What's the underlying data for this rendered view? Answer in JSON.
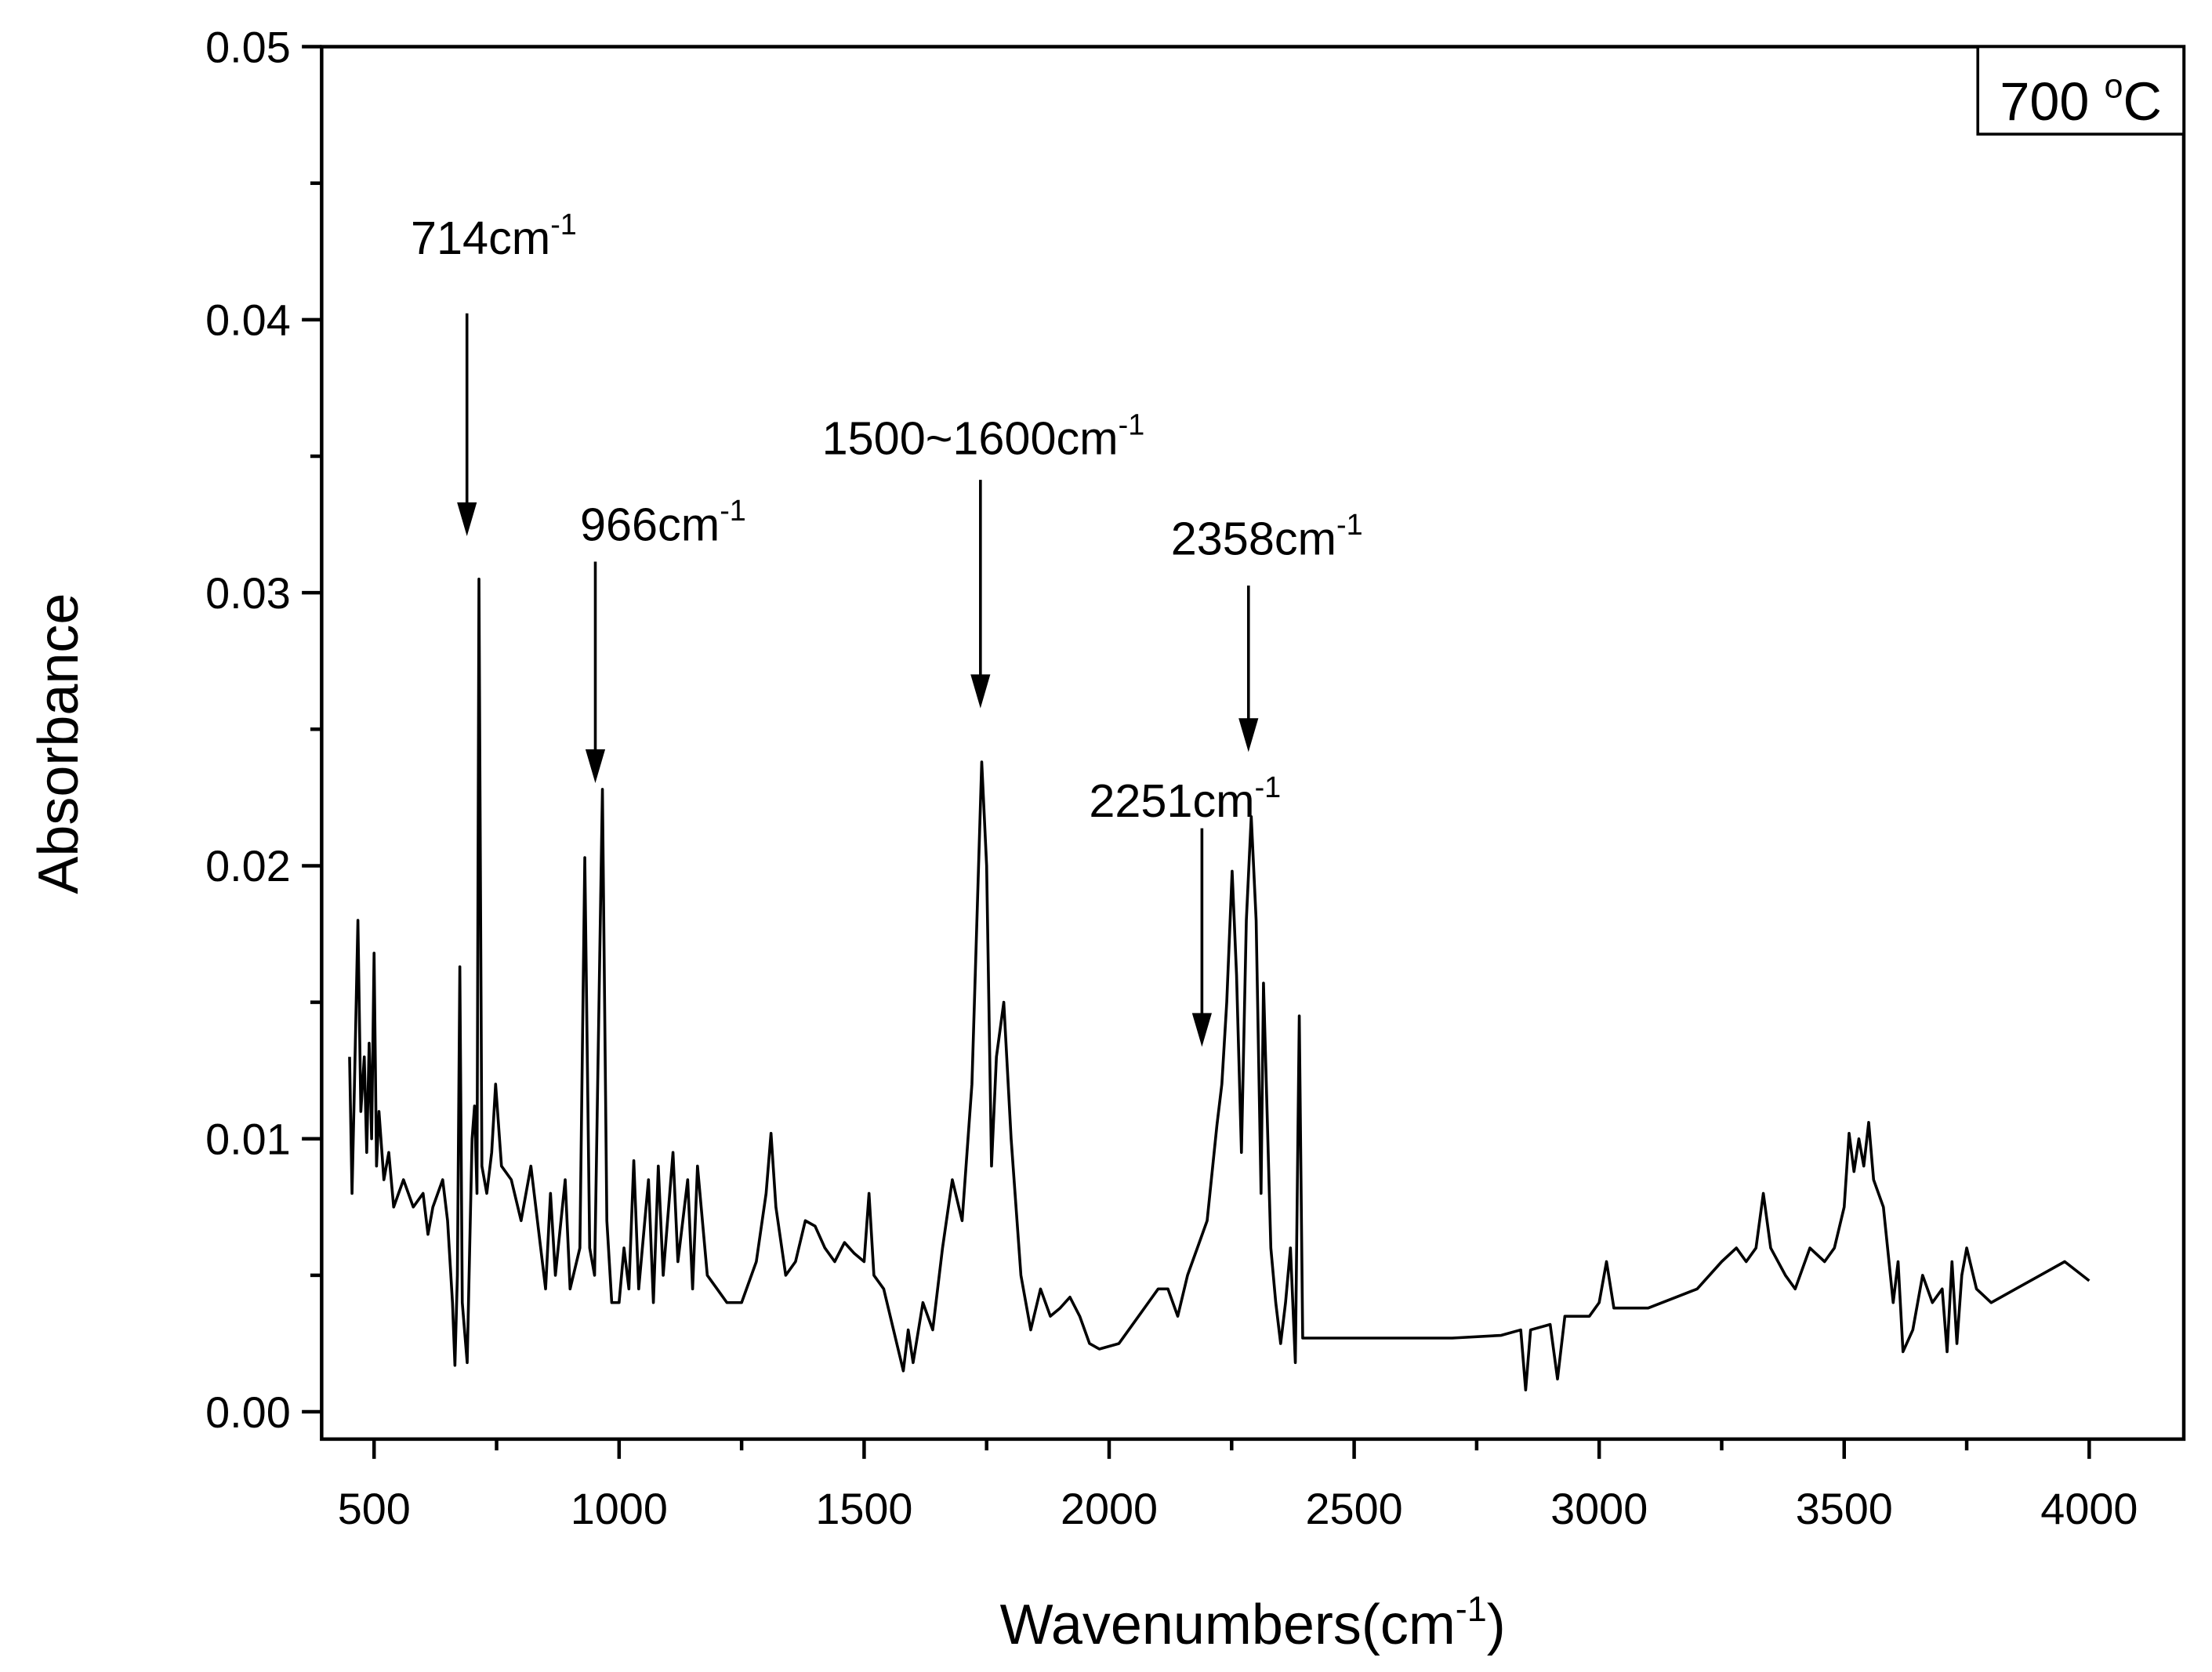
{
  "chart_data": {
    "type": "line",
    "x_label": {
      "text": "Wavenumbers(cm",
      "sup": "-1",
      "tail": ")"
    },
    "y_label": "Absorbance",
    "legend_box": {
      "text": "700 ",
      "sup": "o",
      "tail": "C"
    },
    "xlim": [
      393,
      4193
    ],
    "ylim": [
      -0.001,
      0.05
    ],
    "xticks": [
      500,
      1000,
      1500,
      2000,
      2500,
      3000,
      3500,
      4000
    ],
    "xminor_ticks": [
      750,
      1250,
      1750,
      2250,
      2750,
      3250,
      3750
    ],
    "yticks": [
      {
        "value": 0,
        "label": "0.00"
      },
      0.01,
      0.02,
      0.03,
      0.04,
      0.05
    ],
    "yminor_ticks": [
      0.005,
      0.015,
      0.025,
      0.035,
      0.045
    ],
    "annotations": [
      {
        "text": "714cm",
        "sup": "-1"
      },
      {
        "text": "966cm",
        "sup": "-1"
      },
      {
        "text": "1500~1600cm",
        "sup": "-1"
      },
      {
        "text": "2358cm",
        "sup": "-1"
      },
      {
        "text": "2251cm",
        "sup": "-1"
      }
    ],
    "series": [
      {
        "name": "700 °C",
        "color": "#000000",
        "x": [
          450,
          455,
          460,
          467,
          473,
          480,
          485,
          490,
          495,
          500,
          505,
          510,
          520,
          530,
          540,
          560,
          580,
          600,
          610,
          620,
          640,
          650,
          660,
          665,
          670,
          675,
          680,
          690,
          700,
          705,
          710,
          714,
          720,
          730,
          740,
          748,
          760,
          780,
          800,
          820,
          840,
          850,
          860,
          870,
          890,
          900,
          920,
          930,
          940,
          950,
          966,
          975,
          985,
          1000,
          1010,
          1020,
          1030,
          1040,
          1060,
          1070,
          1080,
          1090,
          1110,
          1120,
          1140,
          1150,
          1160,
          1180,
          1200,
          1220,
          1250,
          1280,
          1300,
          1310,
          1320,
          1340,
          1360,
          1380,
          1400,
          1420,
          1440,
          1460,
          1480,
          1500,
          1510,
          1520,
          1540,
          1560,
          1580,
          1590,
          1600,
          1620,
          1640,
          1660,
          1680,
          1700,
          1720,
          1740,
          1750,
          1760,
          1770,
          1785,
          1800,
          1820,
          1840,
          1860,
          1880,
          1900,
          1920,
          1940,
          1960,
          1980,
          2000,
          2020,
          2040,
          2060,
          2080,
          2100,
          2120,
          2140,
          2160,
          2180,
          2200,
          2220,
          2230,
          2240,
          2251,
          2260,
          2270,
          2280,
          2290,
          2300,
          2310,
          2315,
          2320,
          2330,
          2340,
          2350,
          2360,
          2370,
          2380,
          2388,
          2395,
          2420,
          2500,
          2600,
          2700,
          2800,
          2840,
          2850,
          2860,
          2900,
          2915,
          2930,
          2980,
          3000,
          3015,
          3030,
          3100,
          3200,
          3250,
          3280,
          3300,
          3320,
          3335,
          3350,
          3380,
          3400,
          3430,
          3460,
          3480,
          3500,
          3510,
          3520,
          3530,
          3540,
          3550,
          3560,
          3580,
          3600,
          3610,
          3620,
          3640,
          3660,
          3680,
          3700,
          3710,
          3720,
          3730,
          3740,
          3750,
          3770,
          3800,
          3850,
          3900,
          3950,
          4000
        ],
        "values": [
          0.013,
          0.008,
          0.012,
          0.018,
          0.011,
          0.013,
          0.0095,
          0.0135,
          0.01,
          0.0168,
          0.009,
          0.011,
          0.0085,
          0.0095,
          0.0075,
          0.0085,
          0.0075,
          0.008,
          0.0065,
          0.0075,
          0.0085,
          0.007,
          0.004,
          0.0017,
          0.005,
          0.0163,
          0.004,
          0.0018,
          0.01,
          0.0112,
          0.008,
          0.0305,
          0.009,
          0.008,
          0.0095,
          0.012,
          0.009,
          0.0085,
          0.007,
          0.009,
          0.006,
          0.0045,
          0.008,
          0.005,
          0.0085,
          0.0045,
          0.006,
          0.0203,
          0.006,
          0.005,
          0.0228,
          0.007,
          0.004,
          0.004,
          0.006,
          0.0045,
          0.0092,
          0.0045,
          0.0085,
          0.004,
          0.009,
          0.005,
          0.0095,
          0.0055,
          0.0085,
          0.0045,
          0.009,
          0.005,
          0.0045,
          0.004,
          0.004,
          0.0055,
          0.008,
          0.0102,
          0.0075,
          0.005,
          0.0055,
          0.007,
          0.0068,
          0.006,
          0.0055,
          0.0062,
          0.0058,
          0.0055,
          0.008,
          0.005,
          0.0045,
          0.003,
          0.0015,
          0.003,
          0.0018,
          0.004,
          0.003,
          0.006,
          0.0085,
          0.007,
          0.012,
          0.0238,
          0.02,
          0.009,
          0.013,
          0.015,
          0.01,
          0.005,
          0.003,
          0.0045,
          0.0035,
          0.0038,
          0.0042,
          0.0035,
          0.0025,
          0.0023,
          0.0024,
          0.0025,
          0.003,
          0.0035,
          0.004,
          0.0045,
          0.0045,
          0.0035,
          0.005,
          0.006,
          0.007,
          0.0105,
          0.012,
          0.015,
          0.0198,
          0.016,
          0.0095,
          0.018,
          0.0218,
          0.018,
          0.008,
          0.0157,
          0.0125,
          0.006,
          0.004,
          0.0025,
          0.004,
          0.006,
          0.0018,
          0.0145,
          0.0027,
          0.0027,
          0.0027,
          0.0027,
          0.0027,
          0.0028,
          0.003,
          0.0008,
          0.003,
          0.0032,
          0.0012,
          0.0035,
          0.0035,
          0.004,
          0.0055,
          0.0038,
          0.0038,
          0.0045,
          0.0055,
          0.006,
          0.0055,
          0.006,
          0.008,
          0.006,
          0.005,
          0.0045,
          0.006,
          0.0055,
          0.006,
          0.0075,
          0.0102,
          0.0088,
          0.01,
          0.009,
          0.0106,
          0.0085,
          0.0075,
          0.004,
          0.0055,
          0.0022,
          0.003,
          0.005,
          0.004,
          0.0045,
          0.0022,
          0.0055,
          0.0025,
          0.005,
          0.006,
          0.0045,
          0.004,
          0.0045,
          0.005,
          0.0055,
          0.0048
        ]
      }
    ]
  }
}
